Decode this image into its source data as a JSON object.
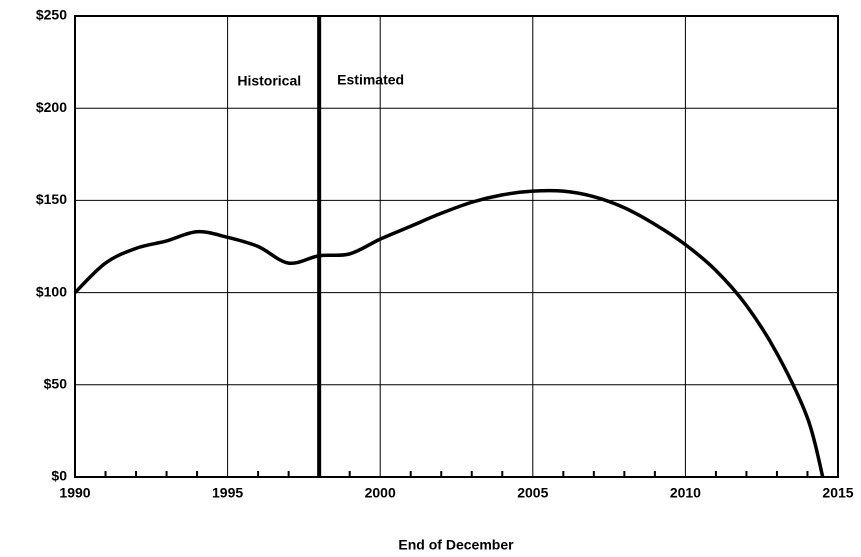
{
  "chart_data": {
    "type": "line",
    "x_label": "End of December",
    "x": [
      1990,
      1991,
      1992,
      1993,
      1994,
      1995,
      1996,
      1997,
      1998,
      1999,
      2000,
      2001,
      2002,
      2003,
      2004,
      2005,
      2006,
      2007,
      2008,
      2009,
      2010,
      2011,
      2012,
      2013,
      2014,
      2014.5
    ],
    "series": [
      {
        "color": "#000000",
        "values": [
          100,
          116,
          124,
          128,
          133,
          130,
          125,
          116,
          120,
          121,
          129,
          136,
          143,
          149,
          153,
          155,
          155,
          152,
          146,
          137,
          126,
          112,
          93,
          67,
          32,
          0
        ]
      }
    ],
    "xlim": [
      1990,
      2015
    ],
    "xticks": [
      1990,
      1995,
      2000,
      2005,
      2010,
      2015
    ],
    "xminorticks": [
      1991,
      1992,
      1993,
      1994,
      1996,
      1997,
      1998,
      1999,
      2001,
      2002,
      2003,
      2004,
      2006,
      2007,
      2008,
      2009,
      2011,
      2012,
      2013,
      2014
    ],
    "ylim": [
      0,
      250
    ],
    "yticks": [
      {
        "value": 0,
        "label": "$0"
      },
      {
        "value": 50,
        "label": "$50"
      },
      {
        "value": 100,
        "label": "$100"
      },
      {
        "value": 150,
        "label": "$150"
      },
      {
        "value": 200,
        "label": "$200"
      },
      {
        "value": 250,
        "label": "$250"
      }
    ],
    "grid": true,
    "divider": {
      "x": 1998,
      "left_label": "Historical",
      "right_label": "Estimated"
    }
  }
}
